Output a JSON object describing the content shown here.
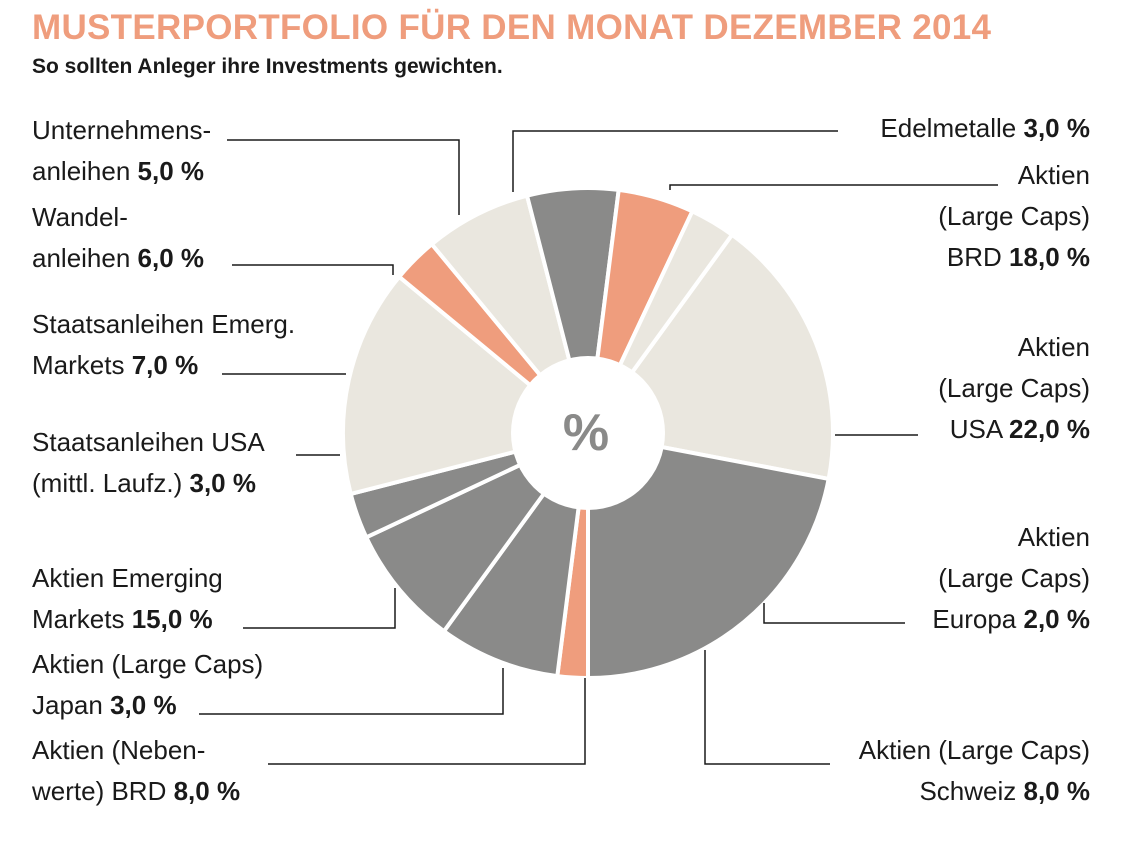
{
  "title": "MUSTERPORTFOLIO FÜR DEN MONAT DEZEMBER 2014",
  "subtitle": "So sollten Anleger ihre Investments gewichten.",
  "center_symbol": "%",
  "colors": {
    "title": "#ef9d7d",
    "dark": "#8a8a89",
    "light": "#eae7df",
    "salmon": "#ef9d7d"
  },
  "chart_data": {
    "type": "pie",
    "unit": "%",
    "series": [
      {
        "name": "Aktien (Large Caps) BRD",
        "value": 18.0,
        "color": "#eae7df"
      },
      {
        "name": "Aktien (Large Caps) USA",
        "value": 22.0,
        "color": "#8a8a89"
      },
      {
        "name": "Aktien (Large Caps) Europa",
        "value": 2.0,
        "color": "#ef9d7d"
      },
      {
        "name": "Aktien (Large Caps) Schweiz",
        "value": 8.0,
        "color": "#8a8a89"
      },
      {
        "name": "Aktien (Nebenwerte) BRD",
        "value": 8.0,
        "color": "#8a8a89"
      },
      {
        "name": "Aktien (Large Caps) Japan",
        "value": 3.0,
        "color": "#8a8a89"
      },
      {
        "name": "Aktien Emerging Markets",
        "value": 15.0,
        "color": "#eae7df"
      },
      {
        "name": "Staatsanleihen USA (mittl. Laufz.)",
        "value": 3.0,
        "color": "#ef9d7d"
      },
      {
        "name": "Staatsanleihen Emerg. Markets",
        "value": 7.0,
        "color": "#eae7df"
      },
      {
        "name": "Wandelanleihen",
        "value": 6.0,
        "color": "#8a8a89"
      },
      {
        "name": "Unternehmensanleihen",
        "value": 5.0,
        "color": "#ef9d7d"
      },
      {
        "name": "Edelmetalle",
        "value": 3.0,
        "color": "#eae7df"
      }
    ]
  },
  "labels": {
    "brd": {
      "lines": [
        "Aktien",
        "(Large Caps)"
      ],
      "last": "BRD",
      "value": "18,0 %"
    },
    "usa": {
      "lines": [
        "Aktien",
        "(Large Caps)"
      ],
      "last": "USA",
      "value": "22,0 %"
    },
    "europa": {
      "lines": [
        "Aktien",
        "(Large Caps)"
      ],
      "last": "Europa",
      "value": "2,0 %"
    },
    "schweiz": {
      "lines": [
        "Aktien (Large Caps)"
      ],
      "last": "Schweiz",
      "value": "8,0 %"
    },
    "nebenwerte": {
      "lines": [
        "Aktien (Neben-"
      ],
      "last": "werte) BRD",
      "value": "8,0 %"
    },
    "japan": {
      "lines": [
        "Aktien (Large Caps)"
      ],
      "last": "Japan",
      "value": "3,0 %"
    },
    "emerging": {
      "lines": [
        "Aktien Emerging"
      ],
      "last": "Markets",
      "value": "15,0 %"
    },
    "staats_usa": {
      "lines": [
        "Staatsanleihen USA"
      ],
      "last": "(mittl. Laufz.)",
      "value": "3,0 %"
    },
    "staats_em": {
      "lines": [
        "Staatsanleihen Emerg."
      ],
      "last": "Markets",
      "value": "7,0 %"
    },
    "wandel": {
      "lines": [
        "Wandel-"
      ],
      "last": "anleihen",
      "value": "6,0 %"
    },
    "unternehmen": {
      "lines": [
        "Unternehmens-"
      ],
      "last": "anleihen",
      "value": "5,0 %"
    },
    "edelmetalle": {
      "lines": [],
      "last": "Edelmetalle",
      "value": "3,0 %"
    }
  }
}
